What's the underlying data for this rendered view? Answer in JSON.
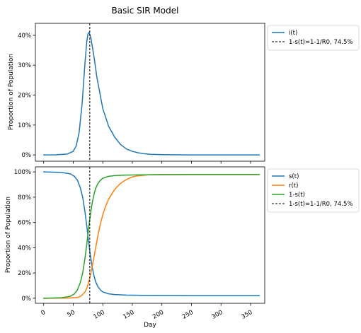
{
  "chart_data": {
    "title": "Basic SIR Model",
    "xlabel": "Day",
    "colors": {
      "i": "#1f77b4",
      "s": "#1f77b4",
      "r": "#ff7f0e",
      "one_minus_s": "#2ca02c",
      "threshold": "#000000"
    },
    "charts": [
      {
        "type": "line",
        "ylabel": "Proportion of Population",
        "xlim": [
          -14,
          374
        ],
        "ylim": [
          -2.1,
          44
        ],
        "yticks": [
          0,
          10,
          20,
          30,
          40
        ],
        "ytick_labels": [
          "0%",
          "10%",
          "20%",
          "30%",
          "40%"
        ],
        "series": [
          {
            "name": "i(t)",
            "color_key": "i",
            "style": "solid",
            "x": [
              0,
              20,
              40,
              50,
              55,
              60,
              65,
              70,
              73,
              75,
              77,
              80,
              85,
              90,
              100,
              110,
              120,
              130,
              140,
              150,
              160,
              170,
              180,
              200,
              250,
              300,
              365
            ],
            "y": [
              0,
              0.03,
              0.3,
              1.2,
              3,
              7.5,
              17,
              31,
              38,
              40.5,
              41,
              39,
              33,
              26,
              15.5,
              9.5,
              6,
              3.5,
              2,
              1.2,
              0.7,
              0.4,
              0.2,
              0.1,
              0,
              0,
              0
            ]
          },
          {
            "name": "1-s(t)=1-1/R0, 74.5%",
            "color_key": "threshold",
            "style": "dashed",
            "vline_x": 78
          }
        ]
      },
      {
        "type": "line",
        "ylabel": "Proportion of Population",
        "xlim": [
          -14,
          374
        ],
        "ylim": [
          -4,
          104
        ],
        "yticks": [
          0,
          20,
          40,
          60,
          80,
          100
        ],
        "ytick_labels": [
          "0%",
          "20%",
          "40%",
          "60%",
          "80%",
          "100%"
        ],
        "xticks": [
          0,
          50,
          100,
          150,
          200,
          250,
          300,
          350
        ],
        "xtick_labels": [
          "0",
          "50",
          "100",
          "150",
          "200",
          "250",
          "300",
          "350"
        ],
        "series": [
          {
            "name": "s(t)",
            "color_key": "s",
            "style": "solid",
            "x": [
              0,
              30,
              45,
              52,
              57,
              62,
              66,
              70,
              73,
              76,
              79,
              82,
              85,
              88,
              92,
              96,
              100,
              110,
              120,
              140,
              170,
              200,
              250,
              300,
              365
            ],
            "y": [
              100,
              99.6,
              98.5,
              96.5,
              93.5,
              87.5,
              80,
              68,
              57,
              45,
              34,
              25,
              18,
              13,
              9,
              6.6,
              5,
              3.5,
              2.9,
              2.5,
              2.3,
              2.2,
              2.1,
              2.1,
              2.1
            ]
          },
          {
            "name": "r(t)",
            "color_key": "r",
            "style": "solid",
            "x": [
              0,
              40,
              55,
              60,
              65,
              70,
              73,
              76,
              79,
              82,
              85,
              88,
              92,
              96,
              100,
              105,
              110,
              120,
              130,
              140,
              150,
              160,
              180,
              200,
              250,
              300,
              365
            ],
            "y": [
              0,
              0.1,
              0.5,
              1,
              2.5,
              5,
              8,
              12.5,
              18,
              25,
              32,
              40,
              50,
              59,
              66,
              73,
              78.5,
              86,
              91,
              94,
              96,
              97,
              97.8,
              97.9,
              97.9,
              97.9,
              97.9
            ]
          },
          {
            "name": "1-s(t)",
            "color_key": "one_minus_s",
            "style": "solid",
            "x": [
              0,
              30,
              45,
              52,
              57,
              62,
              66,
              70,
              73,
              76,
              79,
              82,
              85,
              88,
              92,
              96,
              100,
              110,
              120,
              140,
              170,
              200,
              250,
              300,
              365
            ],
            "y": [
              0,
              0.4,
              1.5,
              3.5,
              6.5,
              12.5,
              20,
              32,
              43,
              55,
              66,
              75,
              82,
              87,
              91,
              93.4,
              95,
              96.5,
              97.1,
              97.5,
              97.7,
              97.8,
              97.9,
              97.9,
              97.9
            ]
          },
          {
            "name": "1-s(t)=1-1/R0, 74.5%",
            "color_key": "threshold",
            "style": "dashed",
            "vline_x": 78
          }
        ]
      }
    ]
  }
}
